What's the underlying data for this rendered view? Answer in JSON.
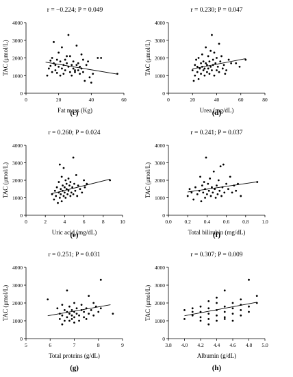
{
  "chart_data": [
    {
      "type": "scatter",
      "title": "",
      "stat": "r = −0.224; P = 0.049",
      "panel_label": "",
      "xlabel": "Fat mass (Kg)",
      "ylabel": "TAC (μmol/L)",
      "xlim": [
        0,
        60
      ],
      "ylim": [
        0,
        4000
      ],
      "xticks": [
        0,
        20,
        40,
        60
      ],
      "xtick_labels": [
        "0",
        "20",
        "40",
        "60"
      ],
      "yticks": [
        0,
        1000,
        2000,
        3000,
        4000
      ],
      "ytick_labels": [
        "0",
        "1000",
        "2000",
        "3000",
        "4000"
      ],
      "trend": [
        [
          12,
          1760
        ],
        [
          56,
          1080
        ]
      ],
      "points": [
        [
          13,
          1000
        ],
        [
          14,
          1400
        ],
        [
          15,
          1850
        ],
        [
          15,
          1550
        ],
        [
          16,
          2000
        ],
        [
          16,
          1200
        ],
        [
          17,
          2900
        ],
        [
          17,
          1700
        ],
        [
          18,
          1600
        ],
        [
          18,
          1300
        ],
        [
          19,
          1150
        ],
        [
          19,
          1900
        ],
        [
          20,
          2300
        ],
        [
          20,
          1500
        ],
        [
          21,
          1000
        ],
        [
          21,
          1800
        ],
        [
          22,
          1400
        ],
        [
          22,
          2600
        ],
        [
          23,
          1600
        ],
        [
          23,
          1100
        ],
        [
          24,
          1900
        ],
        [
          24,
          1300
        ],
        [
          25,
          1700
        ],
        [
          25,
          2100
        ],
        [
          26,
          3300
        ],
        [
          26,
          1500
        ],
        [
          27,
          1200
        ],
        [
          27,
          2100
        ],
        [
          28,
          1000
        ],
        [
          28,
          1600
        ],
        [
          29,
          1800
        ],
        [
          29,
          1400
        ],
        [
          30,
          1300
        ],
        [
          30,
          1200
        ],
        [
          31,
          1600
        ],
        [
          31,
          2700
        ],
        [
          32,
          1700
        ],
        [
          32,
          1300
        ],
        [
          33,
          1500
        ],
        [
          33,
          1100
        ],
        [
          34,
          2200
        ],
        [
          34,
          1400
        ],
        [
          35,
          1900
        ],
        [
          35,
          1200
        ],
        [
          36,
          700
        ],
        [
          37,
          1600
        ],
        [
          38,
          1800
        ],
        [
          39,
          900
        ],
        [
          40,
          600
        ],
        [
          41,
          1100
        ],
        [
          44,
          2000
        ],
        [
          46,
          2000
        ],
        [
          56,
          1100
        ]
      ]
    },
    {
      "type": "scatter",
      "title": "",
      "stat": "r = 0.230; P = 0.047",
      "panel_label": "",
      "xlabel": "Urea (mg/dL)",
      "ylabel": "TAC (μmol/L)",
      "xlim": [
        0,
        80
      ],
      "ylim": [
        0,
        4000
      ],
      "xticks": [
        0,
        20,
        40,
        60,
        80
      ],
      "xtick_labels": [
        "0",
        "20",
        "40",
        "60",
        "80"
      ],
      "yticks": [
        0,
        1000,
        2000,
        3000,
        4000
      ],
      "ytick_labels": [
        "0",
        "1000",
        "2000",
        "3000",
        "4000"
      ],
      "trend": [
        [
          20,
          1380
        ],
        [
          64,
          1960
        ]
      ],
      "points": [
        [
          20,
          1300
        ],
        [
          21,
          700
        ],
        [
          22,
          1000
        ],
        [
          22,
          1600
        ],
        [
          23,
          1900
        ],
        [
          24,
          1200
        ],
        [
          24,
          1500
        ],
        [
          25,
          2000
        ],
        [
          25,
          800
        ],
        [
          26,
          1400
        ],
        [
          27,
          1700
        ],
        [
          27,
          1100
        ],
        [
          28,
          2200
        ],
        [
          28,
          1500
        ],
        [
          29,
          1300
        ],
        [
          29,
          1800
        ],
        [
          30,
          1000
        ],
        [
          30,
          1400
        ],
        [
          31,
          2600
        ],
        [
          31,
          1700
        ],
        [
          32,
          1200
        ],
        [
          32,
          1600
        ],
        [
          33,
          2100
        ],
        [
          33,
          1400
        ],
        [
          34,
          1800
        ],
        [
          34,
          1100
        ],
        [
          35,
          2400
        ],
        [
          35,
          1500
        ],
        [
          36,
          3300
        ],
        [
          36,
          1300
        ],
        [
          37,
          1900
        ],
        [
          37,
          1600
        ],
        [
          38,
          2300
        ],
        [
          38,
          1000
        ],
        [
          39,
          1700
        ],
        [
          40,
          2000
        ],
        [
          40,
          1300
        ],
        [
          41,
          1500
        ],
        [
          42,
          2800
        ],
        [
          42,
          1200
        ],
        [
          43,
          1800
        ],
        [
          44,
          2100
        ],
        [
          45,
          1400
        ],
        [
          46,
          1600
        ],
        [
          47,
          1100
        ],
        [
          48,
          1300
        ],
        [
          50,
          1900
        ],
        [
          52,
          1700
        ],
        [
          56,
          1700
        ],
        [
          59,
          1500
        ],
        [
          64,
          1900
        ]
      ]
    },
    {
      "type": "scatter",
      "title": "",
      "stat": "r = 0.260; P = 0.024",
      "panel_label": "(c)",
      "xlabel": "Uric acid (mg/dL)",
      "ylabel": "TAC (μmol/L)",
      "xlim": [
        0,
        10
      ],
      "ylim": [
        0,
        4000
      ],
      "xticks": [
        0,
        2,
        4,
        6,
        8,
        10
      ],
      "xtick_labels": [
        "0",
        "2",
        "4",
        "6",
        "8",
        "10"
      ],
      "yticks": [
        0,
        1000,
        2000,
        3000,
        4000
      ],
      "ytick_labels": [
        "0",
        "1000",
        "2000",
        "3000",
        "4000"
      ],
      "trend": [
        [
          2.6,
          1230
        ],
        [
          8.7,
          2060
        ]
      ],
      "points": [
        [
          2.7,
          1200
        ],
        [
          2.9,
          900
        ],
        [
          3.0,
          1400
        ],
        [
          3.1,
          1100
        ],
        [
          3.2,
          1600
        ],
        [
          3.3,
          700
        ],
        [
          3.4,
          1300
        ],
        [
          3.4,
          1900
        ],
        [
          3.5,
          1000
        ],
        [
          3.5,
          2900
        ],
        [
          3.6,
          1500
        ],
        [
          3.6,
          1200
        ],
        [
          3.7,
          2200
        ],
        [
          3.7,
          800
        ],
        [
          3.8,
          1700
        ],
        [
          3.8,
          1400
        ],
        [
          3.9,
          2700
        ],
        [
          3.9,
          1100
        ],
        [
          4.0,
          1600
        ],
        [
          4.0,
          1300
        ],
        [
          4.1,
          2000
        ],
        [
          4.1,
          1000
        ],
        [
          4.2,
          1500
        ],
        [
          4.2,
          1800
        ],
        [
          4.3,
          1200
        ],
        [
          4.4,
          2100
        ],
        [
          4.4,
          1400
        ],
        [
          4.5,
          1700
        ],
        [
          4.6,
          1100
        ],
        [
          4.6,
          1900
        ],
        [
          4.7,
          1300
        ],
        [
          4.8,
          1600
        ],
        [
          4.9,
          3300
        ],
        [
          4.9,
          1200
        ],
        [
          5.0,
          1800
        ],
        [
          5.1,
          1400
        ],
        [
          5.2,
          2300
        ],
        [
          5.3,
          1100
        ],
        [
          5.4,
          1700
        ],
        [
          5.6,
          1500
        ],
        [
          5.8,
          1300
        ],
        [
          6.0,
          2000
        ],
        [
          6.1,
          1600
        ],
        [
          6.3,
          1800
        ],
        [
          8.7,
          2000
        ]
      ]
    },
    {
      "type": "scatter",
      "title": "",
      "stat": "r = 0.241; P = 0.037",
      "panel_label": "(d)",
      "xlabel": "Total bilirubin (mg/dL)",
      "ylabel": "TAC (μmol/L)",
      "xlim": [
        0,
        1.0
      ],
      "ylim": [
        0,
        4000
      ],
      "xticks": [
        0,
        0.2,
        0.4,
        0.6,
        0.8,
        1.0
      ],
      "xtick_labels": [
        "0.0",
        "0.2",
        "0.4",
        "0.6",
        "0.8",
        "1.0"
      ],
      "yticks": [
        0,
        1000,
        2000,
        3000,
        4000
      ],
      "ytick_labels": [
        "0",
        "1000",
        "2000",
        "3000",
        "4000"
      ],
      "trend": [
        [
          0.2,
          1330
        ],
        [
          0.93,
          1920
        ]
      ],
      "points": [
        [
          0.2,
          1100
        ],
        [
          0.22,
          1500
        ],
        [
          0.24,
          1300
        ],
        [
          0.26,
          900
        ],
        [
          0.28,
          1600
        ],
        [
          0.3,
          1200
        ],
        [
          0.32,
          1400
        ],
        [
          0.33,
          2200
        ],
        [
          0.34,
          800
        ],
        [
          0.35,
          1700
        ],
        [
          0.36,
          1300
        ],
        [
          0.37,
          1900
        ],
        [
          0.38,
          1000
        ],
        [
          0.38,
          1500
        ],
        [
          0.39,
          3300
        ],
        [
          0.4,
          1200
        ],
        [
          0.41,
          1800
        ],
        [
          0.42,
          1400
        ],
        [
          0.43,
          2100
        ],
        [
          0.44,
          1100
        ],
        [
          0.45,
          1600
        ],
        [
          0.46,
          1300
        ],
        [
          0.47,
          2500
        ],
        [
          0.48,
          1500
        ],
        [
          0.49,
          1000
        ],
        [
          0.5,
          1700
        ],
        [
          0.51,
          1200
        ],
        [
          0.52,
          2000
        ],
        [
          0.53,
          1400
        ],
        [
          0.54,
          2800
        ],
        [
          0.55,
          1100
        ],
        [
          0.56,
          1600
        ],
        [
          0.57,
          2900
        ],
        [
          0.58,
          1300
        ],
        [
          0.6,
          1800
        ],
        [
          0.62,
          1500
        ],
        [
          0.64,
          2200
        ],
        [
          0.66,
          1300
        ],
        [
          0.68,
          1700
        ],
        [
          0.7,
          1400
        ],
        [
          0.72,
          1800
        ],
        [
          0.75,
          1100
        ],
        [
          0.92,
          1900
        ]
      ]
    },
    {
      "type": "scatter",
      "title": "",
      "stat": "r = 0.251; P = 0.031",
      "panel_label": "(e)",
      "xlabel": "Total proteins (g/dL)",
      "ylabel": "TAC (μmol/L)",
      "xlim": [
        5,
        9
      ],
      "ylim": [
        0,
        4000
      ],
      "xticks": [
        5,
        6,
        7,
        8,
        9
      ],
      "xtick_labels": [
        "5",
        "6",
        "7",
        "8",
        "9"
      ],
      "yticks": [
        0,
        1000,
        2000,
        3000,
        4000
      ],
      "ytick_labels": [
        "0",
        "1000",
        "2000",
        "3000",
        "4000"
      ],
      "trend": [
        [
          5.9,
          1280
        ],
        [
          8.5,
          1900
        ]
      ],
      "points": [
        [
          5.9,
          2200
        ],
        [
          6.3,
          1700
        ],
        [
          6.4,
          1400
        ],
        [
          6.4,
          1100
        ],
        [
          6.5,
          800
        ],
        [
          6.5,
          1900
        ],
        [
          6.5,
          1300
        ],
        [
          6.6,
          1600
        ],
        [
          6.6,
          1000
        ],
        [
          6.7,
          2700
        ],
        [
          6.7,
          1200
        ],
        [
          6.7,
          1500
        ],
        [
          6.8,
          1400
        ],
        [
          6.8,
          1000
        ],
        [
          6.8,
          1800
        ],
        [
          6.9,
          1300
        ],
        [
          6.9,
          1100
        ],
        [
          6.9,
          1600
        ],
        [
          7.0,
          1500
        ],
        [
          7.0,
          900
        ],
        [
          7.0,
          2000
        ],
        [
          7.0,
          1200
        ],
        [
          7.1,
          1400
        ],
        [
          7.1,
          1700
        ],
        [
          7.2,
          1300
        ],
        [
          7.2,
          1000
        ],
        [
          7.3,
          1600
        ],
        [
          7.3,
          1900
        ],
        [
          7.4,
          1200
        ],
        [
          7.4,
          1500
        ],
        [
          7.5,
          1700
        ],
        [
          7.5,
          1100
        ],
        [
          7.6,
          2400
        ],
        [
          7.6,
          1400
        ],
        [
          7.7,
          1600
        ],
        [
          7.8,
          2000
        ],
        [
          7.8,
          1300
        ],
        [
          7.9,
          1800
        ],
        [
          8.0,
          1500
        ],
        [
          8.1,
          3300
        ],
        [
          8.1,
          1700
        ],
        [
          8.6,
          1400
        ]
      ]
    },
    {
      "type": "scatter",
      "title": "",
      "stat": "r = 0.307; P = 0.009",
      "panel_label": "(f)",
      "xlabel": "Albumin (g/dL)",
      "ylabel": "TAC (μmol/L)",
      "xlim": [
        3.8,
        5.0
      ],
      "ylim": [
        0,
        4000
      ],
      "xticks": [
        3.8,
        4.0,
        4.2,
        4.4,
        4.6,
        4.8,
        5.0
      ],
      "xtick_labels": [
        "3.8",
        "4.0",
        "4.2",
        "4.4",
        "4.6",
        "4.8",
        "5.0"
      ],
      "yticks": [
        0,
        1000,
        2000,
        3000,
        4000
      ],
      "ytick_labels": [
        "0",
        "1000",
        "2000",
        "3000",
        "4000"
      ],
      "trend": [
        [
          4.0,
          1280
        ],
        [
          4.9,
          2040
        ]
      ],
      "points": [
        [
          4.0,
          1600
        ],
        [
          4.0,
          1100
        ],
        [
          4.1,
          1500
        ],
        [
          4.1,
          1300
        ],
        [
          4.1,
          1700
        ],
        [
          4.2,
          1200
        ],
        [
          4.2,
          1500
        ],
        [
          4.2,
          1800
        ],
        [
          4.2,
          1000
        ],
        [
          4.3,
          1400
        ],
        [
          4.3,
          1700
        ],
        [
          4.3,
          2100
        ],
        [
          4.3,
          1100
        ],
        [
          4.3,
          800
        ],
        [
          4.4,
          1300
        ],
        [
          4.4,
          1600
        ],
        [
          4.4,
          2000
        ],
        [
          4.4,
          1000
        ],
        [
          4.4,
          2300
        ],
        [
          4.5,
          1500
        ],
        [
          4.5,
          1800
        ],
        [
          4.5,
          1200
        ],
        [
          4.5,
          2700
        ],
        [
          4.5,
          1100
        ],
        [
          4.6,
          1400
        ],
        [
          4.6,
          1700
        ],
        [
          4.6,
          1000
        ],
        [
          4.6,
          2000
        ],
        [
          4.7,
          1600
        ],
        [
          4.7,
          1300
        ],
        [
          4.7,
          2200
        ],
        [
          4.7,
          1900
        ],
        [
          4.8,
          3300
        ],
        [
          4.8,
          1500
        ],
        [
          4.8,
          1800
        ],
        [
          4.9,
          2400
        ],
        [
          4.9,
          2000
        ]
      ]
    }
  ],
  "panel_labels_bottom": [
    "(g)",
    "(h)"
  ]
}
